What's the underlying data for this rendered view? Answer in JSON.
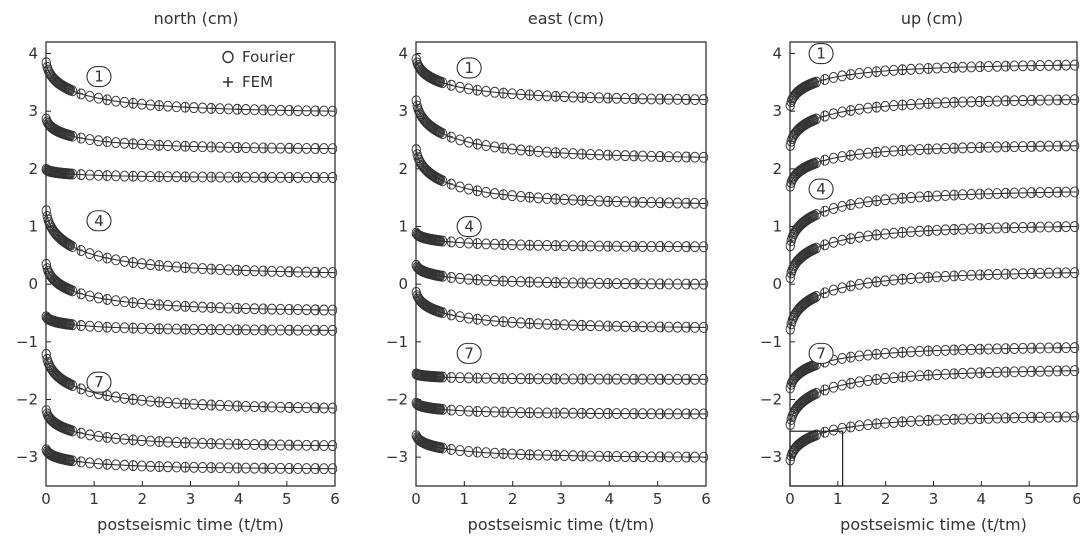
{
  "figure": {
    "legend": {
      "entries": [
        {
          "label": "Fourier",
          "marker": "circle-icon"
        },
        {
          "label": "FEM",
          "marker": "plus-icon"
        }
      ]
    },
    "colors": {
      "ink": "#333333",
      "axes": "#222222",
      "background": "#ffffff"
    }
  },
  "chart_data": [
    {
      "type": "line",
      "title": "north (cm)",
      "xlabel": "postseismic time (t/tm)",
      "ylabel": "",
      "xlim": [
        0,
        6
      ],
      "ylim": [
        -3.5,
        4.2
      ],
      "xticks": [
        "0",
        "1",
        "2",
        "3",
        "4",
        "5",
        "6"
      ],
      "yticks": [
        "−3",
        "−2",
        "−1",
        "0",
        "1",
        "2",
        "3",
        "4"
      ],
      "curve_labels": [
        {
          "text": "1",
          "x": 1.1,
          "y": 3.6
        },
        {
          "text": "4",
          "x": 1.1,
          "y": 1.1
        },
        {
          "text": "7",
          "x": 1.1,
          "y": -1.7
        }
      ],
      "series": [
        {
          "values_start": 3.9,
          "values_end": 3.0
        },
        {
          "values_start": 2.9,
          "values_end": 2.35
        },
        {
          "values_start": 2.0,
          "values_end": 1.85
        },
        {
          "values_start": 1.35,
          "values_end": 0.2
        },
        {
          "values_start": 0.4,
          "values_end": -0.45
        },
        {
          "values_start": -0.55,
          "values_end": -0.8
        },
        {
          "values_start": -1.15,
          "values_end": -2.15
        },
        {
          "values_start": -2.15,
          "values_end": -2.8
        },
        {
          "values_start": -2.85,
          "values_end": -3.2
        }
      ]
    },
    {
      "type": "line",
      "title": "east (cm)",
      "xlabel": "postseismic time (t/tm)",
      "ylabel": "",
      "xlim": [
        0,
        6
      ],
      "ylim": [
        -3.5,
        4.2
      ],
      "xticks": [
        "0",
        "1",
        "2",
        "3",
        "4",
        "5",
        "6"
      ],
      "yticks": [
        "−3",
        "−2",
        "−1",
        "0",
        "1",
        "2",
        "3",
        "4"
      ],
      "curve_labels": [
        {
          "text": "1",
          "x": 1.1,
          "y": 3.75
        },
        {
          "text": "4",
          "x": 1.1,
          "y": 1.0
        },
        {
          "text": "7",
          "x": 1.1,
          "y": -1.2
        }
      ],
      "series": [
        {
          "values_start": 3.95,
          "values_end": 3.2
        },
        {
          "values_start": 3.25,
          "values_end": 2.2
        },
        {
          "values_start": 2.4,
          "values_end": 1.4
        },
        {
          "values_start": 0.9,
          "values_end": 0.65
        },
        {
          "values_start": 0.35,
          "values_end": 0.0
        },
        {
          "values_start": -0.1,
          "values_end": -0.75
        },
        {
          "values_start": -1.55,
          "values_end": -1.65
        },
        {
          "values_start": -2.05,
          "values_end": -2.25
        },
        {
          "values_start": -2.6,
          "values_end": -3.0
        }
      ]
    },
    {
      "type": "line",
      "title": "up (cm)",
      "xlabel": "postseismic time (t/tm)",
      "ylabel": "",
      "xlim": [
        0,
        6
      ],
      "ylim": [
        -3.5,
        4.2
      ],
      "xticks": [
        "0",
        "1",
        "2",
        "3",
        "4",
        "5",
        "6"
      ],
      "yticks": [
        "−3",
        "−2",
        "−1",
        "0",
        "1",
        "2",
        "3",
        "4"
      ],
      "inset_box": {
        "x": [
          0,
          1.1
        ],
        "y": [
          -3.5,
          -2.55
        ]
      },
      "curve_labels": [
        {
          "text": "1",
          "x": 0.65,
          "y": 4.0
        },
        {
          "text": "4",
          "x": 0.65,
          "y": 1.65
        },
        {
          "text": "7",
          "x": 0.65,
          "y": -1.2
        }
      ],
      "series": [
        {
          "values_start": 3.05,
          "values_end": 3.8
        },
        {
          "values_start": 2.35,
          "values_end": 3.2
        },
        {
          "values_start": 1.65,
          "values_end": 2.4
        },
        {
          "values_start": 0.6,
          "values_end": 1.6
        },
        {
          "values_start": 0.05,
          "values_end": 1.0
        },
        {
          "values_start": -0.85,
          "values_end": 0.2
        },
        {
          "values_start": -1.85,
          "values_end": -1.1
        },
        {
          "values_start": -2.5,
          "values_end": -1.5
        },
        {
          "values_start": -3.1,
          "values_end": -2.3
        }
      ]
    }
  ]
}
